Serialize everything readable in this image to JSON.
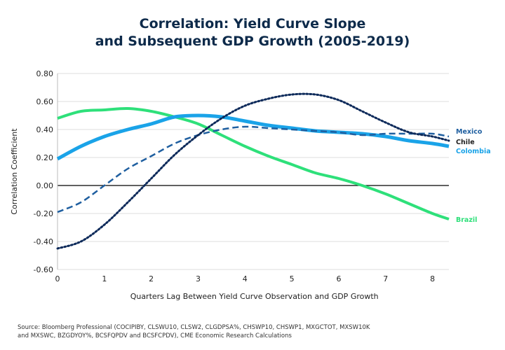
{
  "chart_data": {
    "type": "line",
    "title_lines": [
      "Correlation: Yield Curve Slope",
      "and Subsequent GDP Growth (2005-2019)"
    ],
    "xlabel": "Quarters Lag Between Yield Curve Observation and GDP Growth",
    "ylabel": "Correlation Coefficient",
    "xlim": [
      0,
      8.35
    ],
    "ylim": [
      -0.6,
      0.8
    ],
    "xticks": [
      "0",
      "1",
      "2",
      "3",
      "4",
      "5",
      "6",
      "7",
      "8"
    ],
    "yticks": [
      "0.80",
      "0.60",
      "0.40",
      "0.20",
      "0.00",
      "-0.20",
      "-0.40",
      "-0.60"
    ],
    "grid": true,
    "x": [
      0,
      0.5,
      1,
      1.5,
      2,
      2.5,
      3,
      3.5,
      4,
      4.5,
      5,
      5.5,
      6,
      6.5,
      7,
      7.5,
      8,
      8.35
    ],
    "series": [
      {
        "name": "Brazil",
        "color": "#2ee07a",
        "style": "solid",
        "values": [
          0.48,
          0.53,
          0.54,
          0.55,
          0.53,
          0.49,
          0.44,
          0.36,
          0.28,
          0.21,
          0.15,
          0.09,
          0.05,
          0.0,
          -0.06,
          -0.13,
          -0.2,
          -0.24
        ]
      },
      {
        "name": "Colombia",
        "color": "#1aa3e8",
        "style": "thick",
        "values": [
          0.19,
          0.28,
          0.35,
          0.4,
          0.44,
          0.49,
          0.5,
          0.49,
          0.46,
          0.43,
          0.41,
          0.39,
          0.38,
          0.37,
          0.35,
          0.32,
          0.3,
          0.28
        ]
      },
      {
        "name": "Mexico",
        "color": "#1f5fa0",
        "style": "dashed",
        "values": [
          -0.19,
          -0.12,
          0.0,
          0.12,
          0.21,
          0.3,
          0.36,
          0.4,
          0.42,
          0.41,
          0.4,
          0.39,
          0.38,
          0.36,
          0.37,
          0.37,
          0.37,
          0.35
        ]
      },
      {
        "name": "Chile",
        "color": "#0d2a5a",
        "style": "dotted",
        "values": [
          -0.45,
          -0.4,
          -0.28,
          -0.12,
          0.05,
          0.22,
          0.36,
          0.48,
          0.57,
          0.62,
          0.65,
          0.65,
          0.61,
          0.53,
          0.45,
          0.38,
          0.35,
          0.32
        ]
      }
    ]
  },
  "source": [
    "Source: Bloomberg Professional (COCIPIBY, CLSWU10, CLSW2, CLGDPSA%, CHSWP10, CHSWP1, MXGCTOT, MXSW10K",
    "and MXSWC, BZGDYOY%, BCSFQPDV and BCSFCPDV), CME Economic Research Calculations"
  ]
}
